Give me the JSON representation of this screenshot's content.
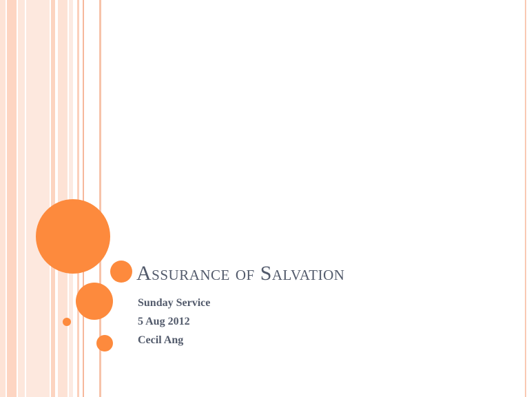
{
  "slide": {
    "title": "Assurance of Salvation",
    "subtitle_lines": [
      "Sunday Service",
      "5 Aug 2012",
      "Cecil Ang"
    ]
  },
  "theme": {
    "accent": "#fd8a3d",
    "stripe_colors": [
      "#fde3d6",
      "#fdd5c2",
      "#fbd0bc"
    ],
    "text_color": "#525a6b"
  }
}
